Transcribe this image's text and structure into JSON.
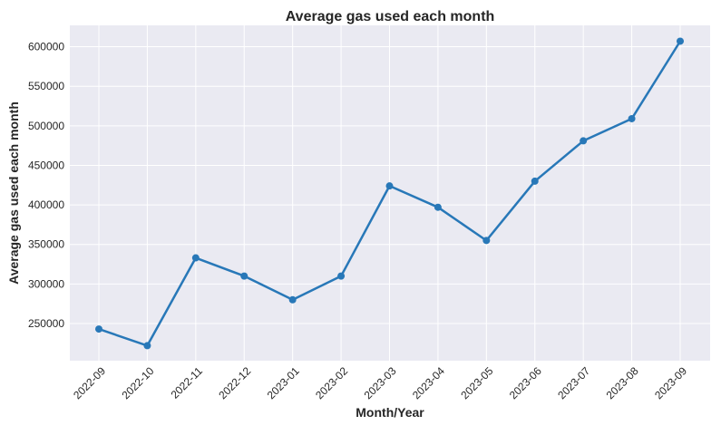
{
  "chart_data": {
    "type": "line",
    "title": "Average gas used each month",
    "xlabel": "Month/Year",
    "ylabel": "Average gas used each month",
    "categories": [
      "2022-09",
      "2022-10",
      "2022-11",
      "2022-12",
      "2023-01",
      "2023-02",
      "2023-03",
      "2023-04",
      "2023-05",
      "2023-06",
      "2023-07",
      "2023-08",
      "2023-09"
    ],
    "series": [
      {
        "values": [
          243000,
          222000,
          333000,
          310000,
          280000,
          310000,
          424000,
          397000,
          355000,
          430000,
          481000,
          509000,
          607000
        ]
      }
    ],
    "yticks": [
      250000,
      300000,
      350000,
      400000,
      450000,
      500000,
      550000,
      600000
    ],
    "ylim": [
      203000,
      627000
    ],
    "grid": true,
    "legend": "none",
    "colors": {
      "line": "#2878b8",
      "plot_background": "#eaeaf2",
      "grid": "#ffffff",
      "text": "#262626"
    }
  }
}
